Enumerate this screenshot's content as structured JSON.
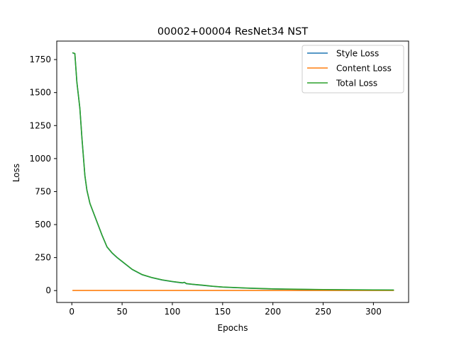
{
  "chart_data": {
    "type": "line",
    "title": "00002+00004 ResNet34 NST",
    "xlabel": "Epochs",
    "ylabel": "Loss",
    "xlim": [
      -15,
      335
    ],
    "ylim": [
      -90,
      1890
    ],
    "x_ticks": [
      0,
      50,
      100,
      150,
      200,
      250,
      300
    ],
    "y_ticks": [
      0,
      250,
      500,
      750,
      1000,
      1250,
      1500,
      1750
    ],
    "grid": false,
    "legend_position": "top-right",
    "series": [
      {
        "name": "Style Loss",
        "color": "#1f77b4",
        "x": [
          1,
          3,
          5,
          8,
          10,
          13,
          15,
          18,
          20,
          25,
          30,
          35,
          40,
          45,
          50,
          60,
          70,
          80,
          90,
          100,
          110,
          112,
          114,
          120,
          130,
          140,
          150,
          175,
          200,
          225,
          250,
          275,
          300,
          320
        ],
        "y": [
          1800,
          1795,
          1580,
          1380,
          1160,
          870,
          760,
          660,
          620,
          520,
          420,
          330,
          285,
          250,
          220,
          160,
          120,
          97,
          80,
          68,
          58,
          62,
          52,
          47,
          40,
          32,
          26,
          18,
          12,
          9,
          7,
          5,
          4,
          3
        ]
      },
      {
        "name": "Content Loss",
        "color": "#ff7f0e",
        "x": [
          1,
          50,
          100,
          150,
          200,
          250,
          300,
          320
        ],
        "y": [
          1,
          1,
          1,
          1,
          1,
          1,
          1,
          1
        ]
      },
      {
        "name": "Total Loss",
        "color": "#2ca02c",
        "x": [
          1,
          3,
          5,
          8,
          10,
          13,
          15,
          18,
          20,
          25,
          30,
          35,
          40,
          45,
          50,
          60,
          70,
          80,
          90,
          100,
          110,
          112,
          114,
          120,
          130,
          140,
          150,
          175,
          200,
          225,
          250,
          275,
          300,
          320
        ],
        "y": [
          1801,
          1796,
          1581,
          1381,
          1161,
          871,
          761,
          661,
          621,
          521,
          421,
          331,
          286,
          251,
          221,
          161,
          121,
          98,
          81,
          69,
          59,
          63,
          53,
          48,
          41,
          33,
          27,
          19,
          13,
          10,
          8,
          6,
          5,
          4
        ]
      }
    ]
  }
}
